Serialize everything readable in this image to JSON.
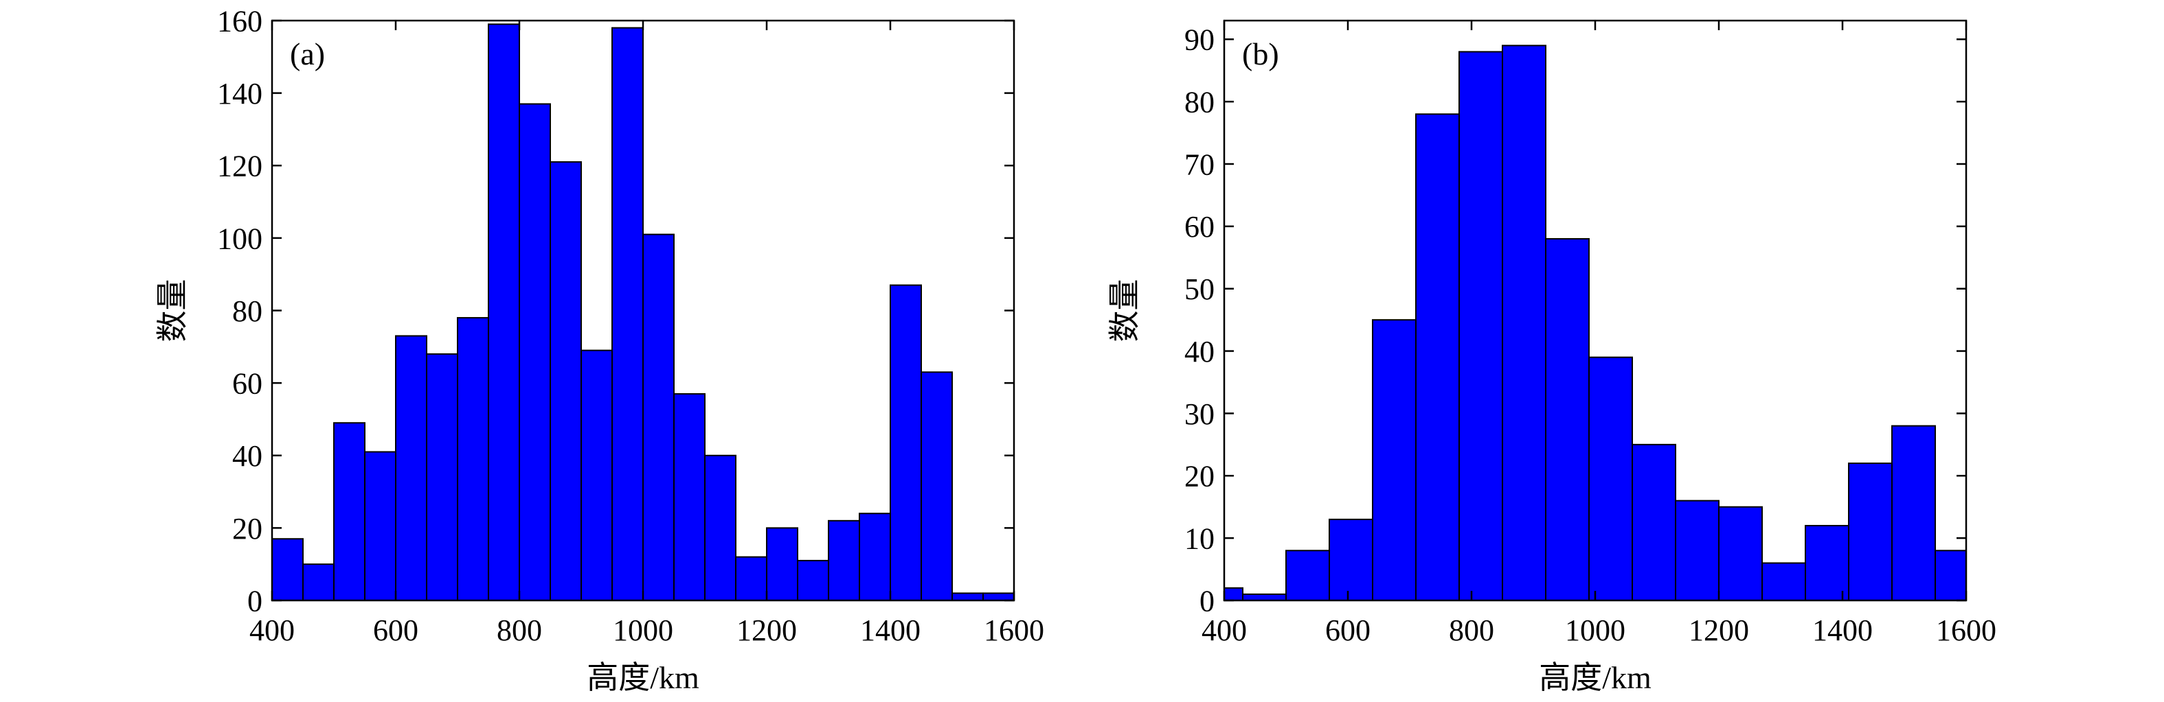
{
  "bar_color": "#0000ff",
  "bar_stroke": "#000000",
  "chart_data": [
    {
      "type": "bar",
      "panel_label": "(a)",
      "xlabel": "高度/km",
      "ylabel": "数量",
      "xlim": [
        400,
        1600
      ],
      "ylim": [
        0,
        160
      ],
      "xticks": [
        400,
        600,
        800,
        1000,
        1200,
        1400,
        1600
      ],
      "yticks": [
        0,
        20,
        40,
        60,
        80,
        100,
        120,
        140,
        160
      ],
      "grid": false,
      "legend": "none",
      "bin_edges": [
        400,
        450,
        500,
        550,
        600,
        650,
        700,
        750,
        800,
        850,
        900,
        950,
        1000,
        1050,
        1100,
        1150,
        1200,
        1250,
        1300,
        1350,
        1400,
        1450,
        1500,
        1550,
        1600
      ],
      "values": [
        17,
        10,
        49,
        41,
        73,
        68,
        78,
        159,
        137,
        121,
        69,
        158,
        101,
        57,
        40,
        12,
        20,
        11,
        22,
        24,
        87,
        63,
        2,
        2
      ]
    },
    {
      "type": "bar",
      "panel_label": "(b)",
      "xlabel": "高度/km",
      "ylabel": "数量",
      "xlim": [
        400,
        1600
      ],
      "ylim": [
        0,
        93
      ],
      "xticks": [
        400,
        600,
        800,
        1000,
        1200,
        1400,
        1600
      ],
      "yticks": [
        0,
        10,
        20,
        30,
        40,
        50,
        60,
        70,
        80,
        90
      ],
      "grid": false,
      "legend": "none",
      "bin_edges": [
        400,
        430,
        500,
        570,
        640,
        710,
        780,
        850,
        920,
        990,
        1060,
        1130,
        1200,
        1270,
        1340,
        1410,
        1480,
        1550,
        1600
      ],
      "values": [
        2,
        1,
        8,
        13,
        45,
        78,
        88,
        89,
        58,
        39,
        25,
        16,
        15,
        6,
        12,
        22,
        28,
        8
      ]
    }
  ]
}
